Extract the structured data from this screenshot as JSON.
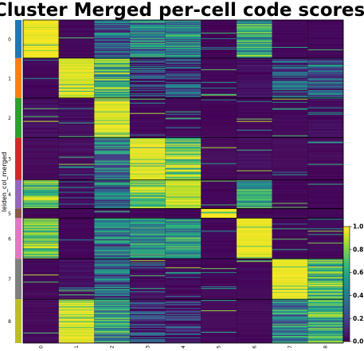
{
  "chart_data": {
    "type": "heatmap",
    "title": "Cluster Merged per-cell code scores",
    "ylabel": "leiden_col_merged",
    "xlabel": "",
    "columns": [
      "0",
      "1",
      "2",
      "3",
      "4",
      "5",
      "6",
      "7",
      "8"
    ],
    "groups": [
      {
        "label": "0",
        "color": "#1f77b4",
        "cells": 48
      },
      {
        "label": "1",
        "color": "#ff7f0e",
        "cells": 50
      },
      {
        "label": "2",
        "color": "#2ca02c",
        "cells": 50
      },
      {
        "label": "3",
        "color": "#d62728",
        "cells": 53
      },
      {
        "label": "4",
        "color": "#9467bd",
        "cells": 36
      },
      {
        "label": "5",
        "color": "#8c564b",
        "cells": 12
      },
      {
        "label": "6",
        "color": "#e377c2",
        "cells": 51
      },
      {
        "label": "7",
        "color": "#7f7f7f",
        "cells": 51
      },
      {
        "label": "8",
        "color": "#bcbd22",
        "cells": 55
      }
    ],
    "group_mean_scores": [
      [
        0.95,
        0.05,
        0.35,
        0.45,
        0.45,
        0.03,
        0.6,
        0.05,
        0.05
      ],
      [
        0.05,
        0.9,
        0.65,
        0.2,
        0.2,
        0.05,
        0.1,
        0.25,
        0.3
      ],
      [
        0.1,
        0.1,
        0.92,
        0.05,
        0.05,
        0.03,
        0.05,
        0.05,
        0.08
      ],
      [
        0.05,
        0.08,
        0.4,
        0.92,
        0.75,
        0.05,
        0.08,
        0.05,
        0.05
      ],
      [
        0.75,
        0.08,
        0.35,
        0.8,
        0.85,
        0.05,
        0.55,
        0.05,
        0.05
      ],
      [
        0.05,
        0.05,
        0.05,
        0.05,
        0.05,
        0.98,
        0.05,
        0.05,
        0.05
      ],
      [
        0.75,
        0.05,
        0.4,
        0.5,
        0.5,
        0.05,
        0.95,
        0.05,
        0.05
      ],
      [
        0.05,
        0.1,
        0.3,
        0.1,
        0.08,
        0.05,
        0.05,
        0.95,
        0.7
      ],
      [
        0.05,
        0.9,
        0.55,
        0.15,
        0.15,
        0.05,
        0.05,
        0.45,
        0.6
      ]
    ],
    "colorbar": {
      "colormap": "viridis",
      "min": 0.0,
      "max": 1.0,
      "ticks": [
        "0.0",
        "0.2",
        "0.4",
        "0.6",
        "0.8",
        "1.0"
      ]
    }
  }
}
